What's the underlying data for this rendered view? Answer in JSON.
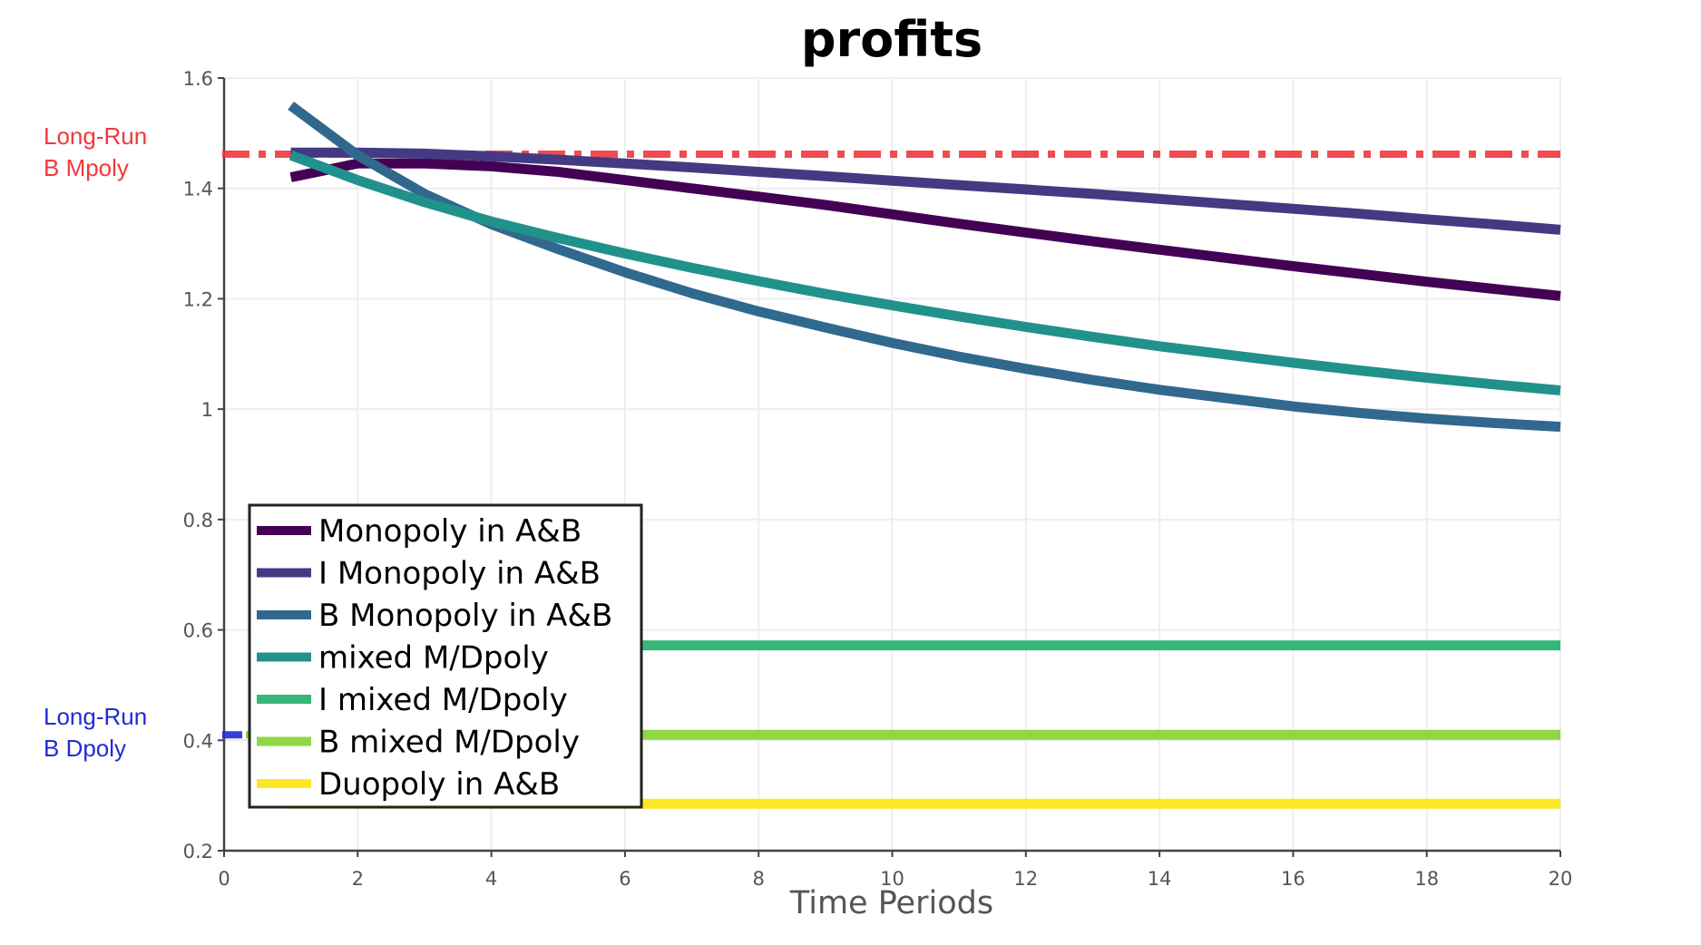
{
  "chart_data": {
    "type": "line",
    "title": "profits",
    "xlabel": "Time Periods",
    "ylabel": "",
    "xlim": [
      0,
      20
    ],
    "ylim": [
      0.2,
      1.6
    ],
    "grid": true,
    "legend_placement": "bottom-left",
    "x_ticks": [
      0,
      2,
      4,
      6,
      8,
      10,
      12,
      14,
      16,
      18,
      20
    ],
    "x_tick_labels": [
      "0",
      "2",
      "4",
      "6",
      "8",
      "10",
      "12",
      "14",
      "16",
      "18",
      "20"
    ],
    "y_ticks": [
      0.2,
      0.4,
      0.6,
      0.8,
      1.0,
      1.2,
      1.4,
      1.6
    ],
    "y_tick_labels": [
      "0.2",
      "0.4",
      "0.6",
      "0.8",
      "1",
      "1.2",
      "1.4",
      "1.6"
    ],
    "x": [
      1,
      2,
      3,
      4,
      5,
      6,
      7,
      8,
      9,
      10,
      11,
      12,
      13,
      14,
      15,
      16,
      17,
      18,
      19,
      20
    ],
    "series": [
      {
        "name": "Monopoly in A&B",
        "color": "#440154",
        "dash": "solid",
        "values": [
          1.42,
          1.445,
          1.445,
          1.44,
          1.43,
          1.415,
          1.4,
          1.385,
          1.37,
          1.353,
          1.336,
          1.32,
          1.304,
          1.289,
          1.274,
          1.259,
          1.245,
          1.231,
          1.218,
          1.205
        ]
      },
      {
        "name": "I Monopoly in A&B",
        "color": "#443a83",
        "dash": "solid",
        "values": [
          1.465,
          1.465,
          1.463,
          1.458,
          1.452,
          1.445,
          1.438,
          1.43,
          1.422,
          1.414,
          1.406,
          1.398,
          1.39,
          1.381,
          1.372,
          1.363,
          1.354,
          1.344,
          1.335,
          1.325
        ]
      },
      {
        "name": "B Monopoly in A&B",
        "color": "#31688e",
        "dash": "solid",
        "values": [
          1.55,
          1.46,
          1.39,
          1.335,
          1.29,
          1.248,
          1.21,
          1.177,
          1.148,
          1.12,
          1.095,
          1.073,
          1.053,
          1.035,
          1.02,
          1.005,
          0.993,
          0.983,
          0.975,
          0.968
        ]
      },
      {
        "name": "mixed M/Dpoly",
        "color": "#21918c",
        "dash": "solid",
        "values": [
          1.46,
          1.415,
          1.375,
          1.34,
          1.31,
          1.282,
          1.256,
          1.232,
          1.209,
          1.188,
          1.168,
          1.149,
          1.131,
          1.114,
          1.099,
          1.084,
          1.07,
          1.057,
          1.045,
          1.034
        ]
      },
      {
        "name": "I mixed M/Dpoly",
        "color": "#35b779",
        "dash": "solid",
        "values": [
          0.572,
          0.572,
          0.572,
          0.572,
          0.572,
          0.572,
          0.572,
          0.572,
          0.572,
          0.572,
          0.572,
          0.572,
          0.572,
          0.572,
          0.572,
          0.572,
          0.572,
          0.572,
          0.572,
          0.572
        ]
      },
      {
        "name": "B mixed M/Dpoly",
        "color": "#8fd744",
        "dash": "solid",
        "values": [
          0.41,
          0.41,
          0.41,
          0.41,
          0.41,
          0.41,
          0.41,
          0.41,
          0.41,
          0.41,
          0.41,
          0.41,
          0.41,
          0.41,
          0.41,
          0.41,
          0.41,
          0.41,
          0.41,
          0.41
        ]
      },
      {
        "name": "Duopoly in A&B",
        "color": "#fde725",
        "dash": "solid",
        "values": [
          0.285,
          0.285,
          0.285,
          0.285,
          0.285,
          0.285,
          0.285,
          0.285,
          0.285,
          0.285,
          0.285,
          0.285,
          0.285,
          0.285,
          0.285,
          0.285,
          0.285,
          0.285,
          0.285,
          0.285
        ]
      }
    ],
    "reference_lines": [
      {
        "label_line1": "Long-Run",
        "label_line2": "B Mpoly",
        "value": 1.462,
        "color": "#f0383c",
        "style": "dash-dot"
      },
      {
        "label_line1": "Long-Run",
        "label_line2": "B Dpoly",
        "value": 0.41,
        "color": "#1f2bd6",
        "style": "dash"
      }
    ]
  }
}
